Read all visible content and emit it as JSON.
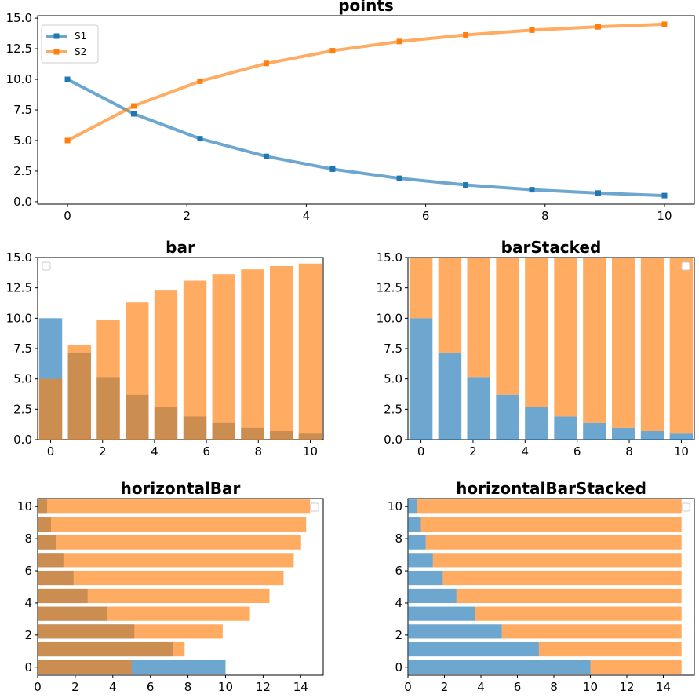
{
  "colors": {
    "S1": "#1f77b4",
    "S2": "#ff7f0e"
  },
  "chart_data": [
    {
      "type": "line",
      "title": "points",
      "xlabel": "",
      "ylabel": "",
      "xlim": [
        -0.5,
        10.5
      ],
      "ylim": [
        -0.2,
        15.2
      ],
      "xticks": [
        "0",
        "2",
        "4",
        "6",
        "8",
        "10"
      ],
      "yticks": [
        "0.0",
        "2.5",
        "5.0",
        "7.5",
        "10.0",
        "12.5",
        "15.0"
      ],
      "legend_position": "top-left",
      "x": [
        0,
        1.11,
        2.22,
        3.33,
        4.44,
        5.56,
        6.67,
        7.78,
        8.89,
        10
      ],
      "series": [
        {
          "name": "S1",
          "values": [
            10.0,
            7.18,
            5.15,
            3.7,
            2.66,
            1.91,
            1.37,
            0.98,
            0.71,
            0.5
          ]
        },
        {
          "name": "S2",
          "values": [
            5.0,
            7.82,
            9.85,
            11.3,
            12.34,
            13.09,
            13.63,
            14.02,
            14.29,
            14.5
          ]
        }
      ]
    },
    {
      "type": "bar",
      "title": "bar",
      "xlabel": "",
      "ylabel": "",
      "xlim": [
        -0.5,
        10.5
      ],
      "ylim": [
        0,
        15.0
      ],
      "xticks": [
        "0",
        "2",
        "4",
        "6",
        "8",
        "10"
      ],
      "yticks": [
        "0.0",
        "2.5",
        "5.0",
        "7.5",
        "10.0",
        "12.5",
        "15.0"
      ],
      "legend_position": "top-left (empty)",
      "x": [
        0,
        1.11,
        2.22,
        3.33,
        4.44,
        5.56,
        6.67,
        7.78,
        8.89,
        10
      ],
      "series": [
        {
          "name": "S1",
          "values": [
            10.0,
            7.18,
            5.15,
            3.7,
            2.66,
            1.91,
            1.37,
            0.98,
            0.71,
            0.5
          ]
        },
        {
          "name": "S2",
          "values": [
            5.0,
            7.82,
            9.85,
            11.3,
            12.34,
            13.09,
            13.63,
            14.02,
            14.29,
            14.5
          ]
        }
      ]
    },
    {
      "type": "bar",
      "stacked": true,
      "title": "barStacked",
      "xlabel": "",
      "ylabel": "",
      "xlim": [
        -0.5,
        10.5
      ],
      "ylim": [
        0,
        15.0
      ],
      "xticks": [
        "0",
        "2",
        "4",
        "6",
        "8",
        "10"
      ],
      "yticks": [
        "0.0",
        "2.5",
        "5.0",
        "7.5",
        "10.0",
        "12.5",
        "15.0"
      ],
      "legend_position": "top-right (empty)",
      "x": [
        0,
        1.11,
        2.22,
        3.33,
        4.44,
        5.56,
        6.67,
        7.78,
        8.89,
        10
      ],
      "series": [
        {
          "name": "S1",
          "values": [
            10.0,
            7.18,
            5.15,
            3.7,
            2.66,
            1.91,
            1.37,
            0.98,
            0.71,
            0.5
          ]
        },
        {
          "name": "S2",
          "values": [
            5.0,
            7.82,
            9.85,
            11.3,
            12.34,
            13.09,
            13.63,
            14.02,
            14.29,
            14.5
          ]
        }
      ]
    },
    {
      "type": "bar",
      "orientation": "horizontal",
      "title": "horizontalBar",
      "xlabel": "",
      "ylabel": "",
      "xlim": [
        0,
        15.2
      ],
      "ylim": [
        -0.5,
        10.5
      ],
      "xticks": [
        "0",
        "2",
        "4",
        "6",
        "8",
        "10",
        "12",
        "14"
      ],
      "yticks": [
        "0",
        "2",
        "4",
        "6",
        "8",
        "10"
      ],
      "legend_position": "top-right (empty)",
      "x": [
        0,
        1.11,
        2.22,
        3.33,
        4.44,
        5.56,
        6.67,
        7.78,
        8.89,
        10
      ],
      "series": [
        {
          "name": "S1",
          "values": [
            10.0,
            7.18,
            5.15,
            3.7,
            2.66,
            1.91,
            1.37,
            0.98,
            0.71,
            0.5
          ]
        },
        {
          "name": "S2",
          "values": [
            5.0,
            7.82,
            9.85,
            11.3,
            12.34,
            13.09,
            13.63,
            14.02,
            14.29,
            14.5
          ]
        }
      ]
    },
    {
      "type": "bar",
      "orientation": "horizontal",
      "stacked": true,
      "title": "horizontalBarStacked",
      "xlabel": "",
      "ylabel": "",
      "xlim": [
        0,
        15.7
      ],
      "ylim": [
        -0.5,
        10.5
      ],
      "xticks": [
        "0",
        "2",
        "4",
        "6",
        "8",
        "10",
        "12",
        "14"
      ],
      "yticks": [
        "0",
        "2",
        "4",
        "6",
        "8",
        "10"
      ],
      "legend_position": "top-right (empty)",
      "x": [
        0,
        1.11,
        2.22,
        3.33,
        4.44,
        5.56,
        6.67,
        7.78,
        8.89,
        10
      ],
      "series": [
        {
          "name": "S1",
          "values": [
            10.0,
            7.18,
            5.15,
            3.7,
            2.66,
            1.91,
            1.37,
            0.98,
            0.71,
            0.5
          ]
        },
        {
          "name": "S2",
          "values": [
            5.0,
            7.82,
            9.85,
            11.3,
            12.34,
            13.09,
            13.63,
            14.02,
            14.29,
            14.5
          ]
        }
      ]
    }
  ]
}
